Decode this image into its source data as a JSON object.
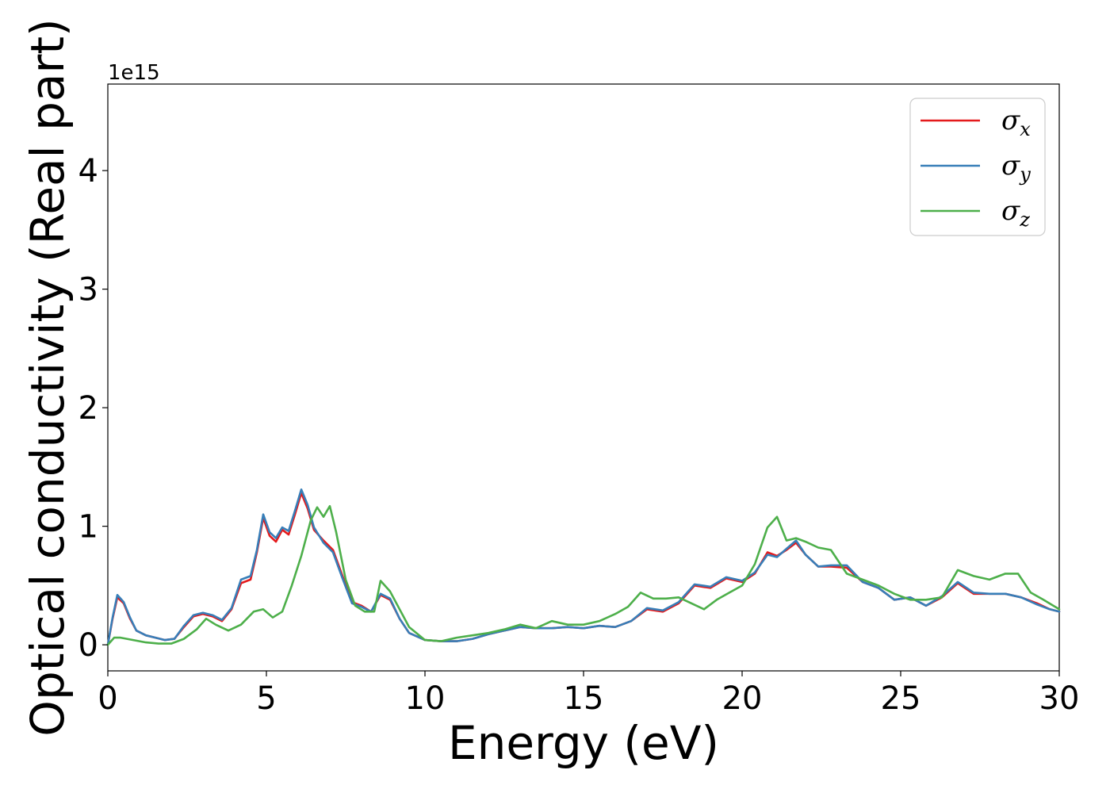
{
  "chart_data": {
    "type": "line",
    "title": "",
    "xlabel": "Energy (eV)",
    "ylabel": "Optical conductivity (Real part)",
    "y_offset_text": "1e15",
    "xlim": [
      0,
      30
    ],
    "ylim": [
      -0.22,
      4.73
    ],
    "xticks": [
      0,
      5,
      10,
      15,
      20,
      25,
      30
    ],
    "xtick_labels": [
      "0",
      "5",
      "10",
      "15",
      "20",
      "25",
      "30"
    ],
    "yticks": [
      0,
      1,
      2,
      3,
      4
    ],
    "ytick_labels": [
      "0",
      "1",
      "2",
      "3",
      "4"
    ],
    "grid": false,
    "legend_position": "top-right",
    "series": [
      {
        "name": "σx",
        "legend_base": "σ",
        "legend_sub": "x",
        "color": "#e41a1c",
        "x": [
          0,
          0.15,
          0.3,
          0.5,
          0.7,
          0.9,
          1.2,
          1.5,
          1.8,
          2.1,
          2.4,
          2.7,
          3.0,
          3.3,
          3.6,
          3.9,
          4.2,
          4.5,
          4.7,
          4.9,
          5.1,
          5.3,
          5.5,
          5.7,
          5.9,
          6.1,
          6.3,
          6.5,
          6.8,
          7.1,
          7.4,
          7.7,
          8.0,
          8.3,
          8.6,
          8.9,
          9.2,
          9.5,
          10.0,
          10.5,
          11.0,
          11.5,
          12.0,
          12.5,
          13.0,
          13.5,
          14.0,
          14.5,
          15.0,
          15.5,
          16.0,
          16.5,
          17.0,
          17.5,
          18.0,
          18.5,
          19.0,
          19.5,
          20.0,
          20.4,
          20.8,
          21.1,
          21.4,
          21.7,
          22.0,
          22.4,
          22.8,
          23.3,
          23.8,
          24.3,
          24.8,
          25.3,
          25.8,
          26.3,
          26.8,
          27.3,
          27.8,
          28.3,
          28.8,
          29.3,
          29.7,
          30.0
        ],
        "values": [
          0.0,
          0.22,
          0.4,
          0.35,
          0.22,
          0.12,
          0.08,
          0.06,
          0.04,
          0.05,
          0.15,
          0.24,
          0.26,
          0.24,
          0.2,
          0.3,
          0.52,
          0.55,
          0.78,
          1.07,
          0.92,
          0.87,
          0.97,
          0.93,
          1.1,
          1.28,
          1.15,
          0.97,
          0.88,
          0.8,
          0.58,
          0.36,
          0.33,
          0.28,
          0.42,
          0.38,
          0.22,
          0.1,
          0.04,
          0.03,
          0.03,
          0.05,
          0.09,
          0.12,
          0.15,
          0.14,
          0.14,
          0.15,
          0.14,
          0.16,
          0.15,
          0.2,
          0.3,
          0.28,
          0.35,
          0.5,
          0.48,
          0.56,
          0.53,
          0.6,
          0.78,
          0.75,
          0.8,
          0.86,
          0.76,
          0.66,
          0.66,
          0.65,
          0.53,
          0.48,
          0.38,
          0.4,
          0.33,
          0.4,
          0.52,
          0.43,
          0.43,
          0.43,
          0.4,
          0.35,
          0.3,
          0.28
        ]
      },
      {
        "name": "σy",
        "legend_base": "σ",
        "legend_sub": "y",
        "color": "#377eb8",
        "x": [
          0,
          0.15,
          0.3,
          0.5,
          0.7,
          0.9,
          1.2,
          1.5,
          1.8,
          2.1,
          2.4,
          2.7,
          3.0,
          3.3,
          3.6,
          3.9,
          4.2,
          4.5,
          4.7,
          4.9,
          5.1,
          5.3,
          5.5,
          5.7,
          5.9,
          6.1,
          6.3,
          6.5,
          6.8,
          7.1,
          7.4,
          7.7,
          8.0,
          8.3,
          8.6,
          8.9,
          9.2,
          9.5,
          10.0,
          10.5,
          11.0,
          11.5,
          12.0,
          12.5,
          13.0,
          13.5,
          14.0,
          14.5,
          15.0,
          15.5,
          16.0,
          16.5,
          17.0,
          17.5,
          18.0,
          18.5,
          19.0,
          19.5,
          20.0,
          20.4,
          20.8,
          21.1,
          21.4,
          21.7,
          22.0,
          22.4,
          22.8,
          23.3,
          23.8,
          24.3,
          24.8,
          25.3,
          25.8,
          26.3,
          26.8,
          27.3,
          27.8,
          28.3,
          28.8,
          29.3,
          29.7,
          30.0
        ],
        "values": [
          0.0,
          0.23,
          0.42,
          0.36,
          0.23,
          0.12,
          0.08,
          0.06,
          0.04,
          0.05,
          0.16,
          0.25,
          0.27,
          0.25,
          0.21,
          0.31,
          0.55,
          0.58,
          0.8,
          1.1,
          0.95,
          0.9,
          0.99,
          0.96,
          1.13,
          1.31,
          1.18,
          0.99,
          0.86,
          0.78,
          0.56,
          0.35,
          0.32,
          0.28,
          0.43,
          0.39,
          0.22,
          0.1,
          0.04,
          0.03,
          0.03,
          0.05,
          0.09,
          0.12,
          0.15,
          0.14,
          0.14,
          0.15,
          0.14,
          0.16,
          0.15,
          0.2,
          0.31,
          0.29,
          0.36,
          0.51,
          0.49,
          0.57,
          0.54,
          0.61,
          0.76,
          0.74,
          0.81,
          0.88,
          0.76,
          0.66,
          0.67,
          0.67,
          0.53,
          0.48,
          0.38,
          0.4,
          0.33,
          0.41,
          0.53,
          0.44,
          0.43,
          0.43,
          0.4,
          0.34,
          0.3,
          0.28
        ]
      },
      {
        "name": "σz",
        "legend_base": "σ",
        "legend_sub": "z",
        "color": "#4daf4a",
        "x": [
          0,
          0.2,
          0.4,
          0.8,
          1.2,
          1.6,
          2.0,
          2.4,
          2.8,
          3.1,
          3.4,
          3.8,
          4.2,
          4.6,
          4.9,
          5.2,
          5.5,
          5.8,
          6.1,
          6.4,
          6.6,
          6.8,
          7.0,
          7.2,
          7.5,
          7.8,
          8.1,
          8.4,
          8.6,
          8.9,
          9.2,
          9.5,
          10.0,
          10.5,
          11.0,
          11.5,
          12.0,
          12.5,
          13.0,
          13.5,
          14.0,
          14.5,
          15.0,
          15.5,
          16.0,
          16.4,
          16.8,
          17.2,
          17.6,
          18.0,
          18.4,
          18.8,
          19.2,
          19.6,
          20.0,
          20.4,
          20.8,
          21.1,
          21.4,
          21.7,
          22.0,
          22.4,
          22.8,
          23.3,
          23.8,
          24.3,
          24.8,
          25.3,
          25.8,
          26.3,
          26.8,
          27.3,
          27.8,
          28.3,
          28.7,
          29.1,
          29.5,
          30.0
        ],
        "values": [
          0.0,
          0.06,
          0.06,
          0.04,
          0.02,
          0.01,
          0.01,
          0.05,
          0.13,
          0.22,
          0.17,
          0.12,
          0.17,
          0.28,
          0.3,
          0.23,
          0.28,
          0.5,
          0.75,
          1.05,
          1.16,
          1.08,
          1.17,
          0.95,
          0.55,
          0.33,
          0.28,
          0.28,
          0.54,
          0.45,
          0.3,
          0.15,
          0.04,
          0.03,
          0.06,
          0.08,
          0.1,
          0.13,
          0.17,
          0.14,
          0.2,
          0.17,
          0.17,
          0.2,
          0.26,
          0.32,
          0.44,
          0.39,
          0.39,
          0.4,
          0.35,
          0.3,
          0.38,
          0.44,
          0.5,
          0.68,
          0.99,
          1.08,
          0.88,
          0.9,
          0.87,
          0.82,
          0.8,
          0.6,
          0.55,
          0.5,
          0.43,
          0.38,
          0.38,
          0.4,
          0.63,
          0.58,
          0.55,
          0.6,
          0.6,
          0.44,
          0.38,
          0.3
        ]
      }
    ]
  }
}
